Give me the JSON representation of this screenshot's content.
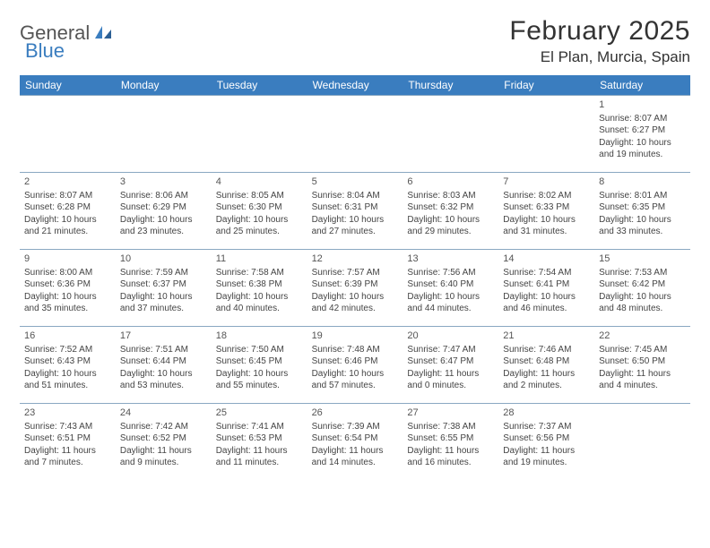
{
  "logo": {
    "text1": "General",
    "text2": "Blue"
  },
  "title": "February 2025",
  "location": "El Plan, Murcia, Spain",
  "colors": {
    "header_bg": "#3a7dbf",
    "header_text": "#ffffff",
    "border": "#8aa8c2",
    "text": "#444444",
    "logo_gray": "#555555",
    "logo_blue": "#3a7dbf"
  },
  "weekdays": [
    "Sunday",
    "Monday",
    "Tuesday",
    "Wednesday",
    "Thursday",
    "Friday",
    "Saturday"
  ],
  "weeks": [
    [
      null,
      null,
      null,
      null,
      null,
      null,
      {
        "d": "1",
        "sr": "Sunrise: 8:07 AM",
        "ss": "Sunset: 6:27 PM",
        "dl1": "Daylight: 10 hours",
        "dl2": "and 19 minutes."
      }
    ],
    [
      {
        "d": "2",
        "sr": "Sunrise: 8:07 AM",
        "ss": "Sunset: 6:28 PM",
        "dl1": "Daylight: 10 hours",
        "dl2": "and 21 minutes."
      },
      {
        "d": "3",
        "sr": "Sunrise: 8:06 AM",
        "ss": "Sunset: 6:29 PM",
        "dl1": "Daylight: 10 hours",
        "dl2": "and 23 minutes."
      },
      {
        "d": "4",
        "sr": "Sunrise: 8:05 AM",
        "ss": "Sunset: 6:30 PM",
        "dl1": "Daylight: 10 hours",
        "dl2": "and 25 minutes."
      },
      {
        "d": "5",
        "sr": "Sunrise: 8:04 AM",
        "ss": "Sunset: 6:31 PM",
        "dl1": "Daylight: 10 hours",
        "dl2": "and 27 minutes."
      },
      {
        "d": "6",
        "sr": "Sunrise: 8:03 AM",
        "ss": "Sunset: 6:32 PM",
        "dl1": "Daylight: 10 hours",
        "dl2": "and 29 minutes."
      },
      {
        "d": "7",
        "sr": "Sunrise: 8:02 AM",
        "ss": "Sunset: 6:33 PM",
        "dl1": "Daylight: 10 hours",
        "dl2": "and 31 minutes."
      },
      {
        "d": "8",
        "sr": "Sunrise: 8:01 AM",
        "ss": "Sunset: 6:35 PM",
        "dl1": "Daylight: 10 hours",
        "dl2": "and 33 minutes."
      }
    ],
    [
      {
        "d": "9",
        "sr": "Sunrise: 8:00 AM",
        "ss": "Sunset: 6:36 PM",
        "dl1": "Daylight: 10 hours",
        "dl2": "and 35 minutes."
      },
      {
        "d": "10",
        "sr": "Sunrise: 7:59 AM",
        "ss": "Sunset: 6:37 PM",
        "dl1": "Daylight: 10 hours",
        "dl2": "and 37 minutes."
      },
      {
        "d": "11",
        "sr": "Sunrise: 7:58 AM",
        "ss": "Sunset: 6:38 PM",
        "dl1": "Daylight: 10 hours",
        "dl2": "and 40 minutes."
      },
      {
        "d": "12",
        "sr": "Sunrise: 7:57 AM",
        "ss": "Sunset: 6:39 PM",
        "dl1": "Daylight: 10 hours",
        "dl2": "and 42 minutes."
      },
      {
        "d": "13",
        "sr": "Sunrise: 7:56 AM",
        "ss": "Sunset: 6:40 PM",
        "dl1": "Daylight: 10 hours",
        "dl2": "and 44 minutes."
      },
      {
        "d": "14",
        "sr": "Sunrise: 7:54 AM",
        "ss": "Sunset: 6:41 PM",
        "dl1": "Daylight: 10 hours",
        "dl2": "and 46 minutes."
      },
      {
        "d": "15",
        "sr": "Sunrise: 7:53 AM",
        "ss": "Sunset: 6:42 PM",
        "dl1": "Daylight: 10 hours",
        "dl2": "and 48 minutes."
      }
    ],
    [
      {
        "d": "16",
        "sr": "Sunrise: 7:52 AM",
        "ss": "Sunset: 6:43 PM",
        "dl1": "Daylight: 10 hours",
        "dl2": "and 51 minutes."
      },
      {
        "d": "17",
        "sr": "Sunrise: 7:51 AM",
        "ss": "Sunset: 6:44 PM",
        "dl1": "Daylight: 10 hours",
        "dl2": "and 53 minutes."
      },
      {
        "d": "18",
        "sr": "Sunrise: 7:50 AM",
        "ss": "Sunset: 6:45 PM",
        "dl1": "Daylight: 10 hours",
        "dl2": "and 55 minutes."
      },
      {
        "d": "19",
        "sr": "Sunrise: 7:48 AM",
        "ss": "Sunset: 6:46 PM",
        "dl1": "Daylight: 10 hours",
        "dl2": "and 57 minutes."
      },
      {
        "d": "20",
        "sr": "Sunrise: 7:47 AM",
        "ss": "Sunset: 6:47 PM",
        "dl1": "Daylight: 11 hours",
        "dl2": "and 0 minutes."
      },
      {
        "d": "21",
        "sr": "Sunrise: 7:46 AM",
        "ss": "Sunset: 6:48 PM",
        "dl1": "Daylight: 11 hours",
        "dl2": "and 2 minutes."
      },
      {
        "d": "22",
        "sr": "Sunrise: 7:45 AM",
        "ss": "Sunset: 6:50 PM",
        "dl1": "Daylight: 11 hours",
        "dl2": "and 4 minutes."
      }
    ],
    [
      {
        "d": "23",
        "sr": "Sunrise: 7:43 AM",
        "ss": "Sunset: 6:51 PM",
        "dl1": "Daylight: 11 hours",
        "dl2": "and 7 minutes."
      },
      {
        "d": "24",
        "sr": "Sunrise: 7:42 AM",
        "ss": "Sunset: 6:52 PM",
        "dl1": "Daylight: 11 hours",
        "dl2": "and 9 minutes."
      },
      {
        "d": "25",
        "sr": "Sunrise: 7:41 AM",
        "ss": "Sunset: 6:53 PM",
        "dl1": "Daylight: 11 hours",
        "dl2": "and 11 minutes."
      },
      {
        "d": "26",
        "sr": "Sunrise: 7:39 AM",
        "ss": "Sunset: 6:54 PM",
        "dl1": "Daylight: 11 hours",
        "dl2": "and 14 minutes."
      },
      {
        "d": "27",
        "sr": "Sunrise: 7:38 AM",
        "ss": "Sunset: 6:55 PM",
        "dl1": "Daylight: 11 hours",
        "dl2": "and 16 minutes."
      },
      {
        "d": "28",
        "sr": "Sunrise: 7:37 AM",
        "ss": "Sunset: 6:56 PM",
        "dl1": "Daylight: 11 hours",
        "dl2": "and 19 minutes."
      },
      null
    ]
  ]
}
